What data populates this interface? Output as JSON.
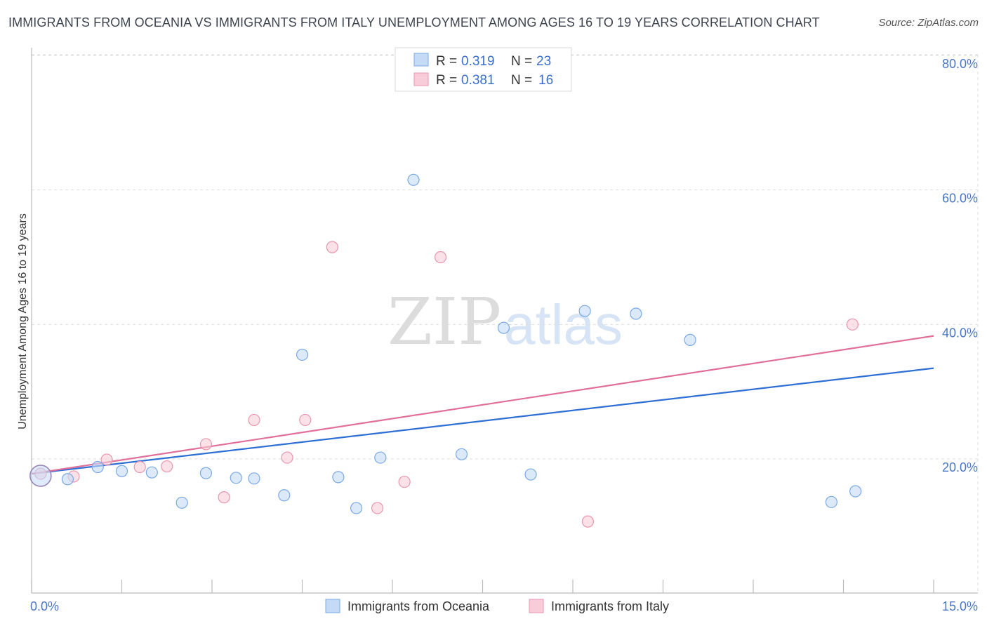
{
  "title": "IMMIGRANTS FROM OCEANIA VS IMMIGRANTS FROM ITALY UNEMPLOYMENT AMONG AGES 16 TO 19 YEARS CORRELATION CHART",
  "source": "Source: ZipAtlas.com",
  "watermark": {
    "zip": "ZIP",
    "atlas": "atlas"
  },
  "chart_data": {
    "type": "scatter",
    "title": "IMMIGRANTS FROM OCEANIA VS IMMIGRANTS FROM ITALY UNEMPLOYMENT AMONG AGES 16 TO 19 YEARS CORRELATION CHART",
    "xlabel": "",
    "ylabel": "Unemployment Among Ages 16 to 19 years",
    "xlim": [
      0,
      15
    ],
    "ylim": [
      0,
      82
    ],
    "x_tick_labels": [
      "0.0%",
      "15.0%"
    ],
    "y_ticks": [
      20,
      40,
      60,
      80
    ],
    "y_tick_labels": [
      "20.0%",
      "40.0%",
      "60.0%",
      "80.0%"
    ],
    "grid": true,
    "legend_position": "top-center",
    "series": [
      {
        "name": "Immigrants from Oceania",
        "color": "#7aa9e6",
        "fill": "#c5daf5",
        "R_label": "R =",
        "R": "0.319",
        "N_label": "N =",
        "N": "23",
        "trend": {
          "x": [
            0,
            15
          ],
          "y": [
            17.8,
            33.5
          ],
          "color": "#2e6fd6"
        },
        "points": [
          {
            "x": 0.15,
            "y": 17.5,
            "big": true
          },
          {
            "x": 0.6,
            "y": 17.0
          },
          {
            "x": 1.1,
            "y": 18.8
          },
          {
            "x": 1.5,
            "y": 18.2
          },
          {
            "x": 2.0,
            "y": 18.0
          },
          {
            "x": 2.5,
            "y": 13.5
          },
          {
            "x": 2.9,
            "y": 17.9
          },
          {
            "x": 3.4,
            "y": 17.2
          },
          {
            "x": 3.7,
            "y": 17.1
          },
          {
            "x": 4.2,
            "y": 14.6
          },
          {
            "x": 4.5,
            "y": 35.5
          },
          {
            "x": 5.1,
            "y": 17.3
          },
          {
            "x": 5.4,
            "y": 12.7
          },
          {
            "x": 5.8,
            "y": 20.2
          },
          {
            "x": 6.35,
            "y": 61.5
          },
          {
            "x": 7.15,
            "y": 20.7
          },
          {
            "x": 7.85,
            "y": 39.5
          },
          {
            "x": 8.3,
            "y": 17.7
          },
          {
            "x": 9.2,
            "y": 42.0
          },
          {
            "x": 10.05,
            "y": 41.6
          },
          {
            "x": 10.95,
            "y": 37.7
          },
          {
            "x": 13.3,
            "y": 13.6
          },
          {
            "x": 13.7,
            "y": 15.2
          }
        ]
      },
      {
        "name": "Immigrants from Italy",
        "color": "#e896b0",
        "fill": "#f8cdd9",
        "R_label": "R =",
        "R": "0.381",
        "N_label": "N =",
        "N": "16",
        "trend": {
          "x": [
            0,
            15
          ],
          "y": [
            17.8,
            38.3
          ],
          "color": "#e0709a"
        },
        "points": [
          {
            "x": 0.15,
            "y": 17.8
          },
          {
            "x": 0.7,
            "y": 17.4
          },
          {
            "x": 1.25,
            "y": 19.9
          },
          {
            "x": 1.8,
            "y": 18.8
          },
          {
            "x": 2.25,
            "y": 18.9
          },
          {
            "x": 2.9,
            "y": 22.2
          },
          {
            "x": 3.2,
            "y": 14.3
          },
          {
            "x": 3.7,
            "y": 25.8
          },
          {
            "x": 4.25,
            "y": 20.2
          },
          {
            "x": 4.55,
            "y": 25.8
          },
          {
            "x": 5.0,
            "y": 51.5
          },
          {
            "x": 5.75,
            "y": 12.7
          },
          {
            "x": 6.2,
            "y": 16.6
          },
          {
            "x": 6.8,
            "y": 50.0
          },
          {
            "x": 9.25,
            "y": 10.7
          },
          {
            "x": 13.65,
            "y": 40.0
          }
        ]
      }
    ]
  }
}
